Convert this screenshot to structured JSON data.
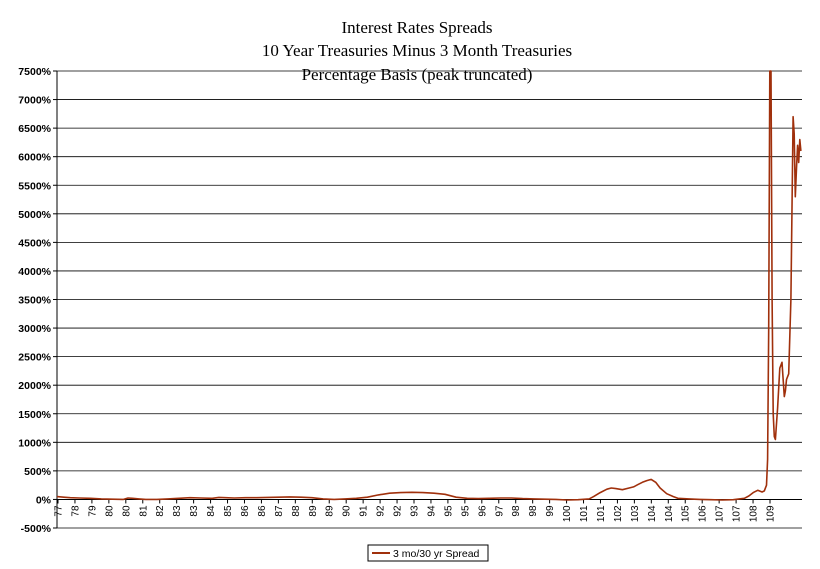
{
  "chart_data": {
    "type": "line",
    "title_lines": [
      "Interest Rates Spreads",
      "10 Year Treasuries Minus 3 Month Treasuries",
      "Percentage Basis (peak truncated)"
    ],
    "ylim": [
      -500,
      7500
    ],
    "ystep": 500,
    "y_tick_labels": [
      "-500%",
      "0%",
      "500%",
      "1000%",
      "1500%",
      "2000%",
      "2500%",
      "3000%",
      "3500%",
      "4000%",
      "4500%",
      "5000%",
      "5500%",
      "6000%",
      "6500%",
      "7000%",
      "7500%"
    ],
    "xlim": [
      77,
      110.6
    ],
    "x_tick_labels": [
      "77",
      "78",
      "79",
      "80",
      "80",
      "81",
      "82",
      "83",
      "83",
      "84",
      "85",
      "86",
      "86",
      "87",
      "88",
      "89",
      "89",
      "90",
      "91",
      "92",
      "92",
      "93",
      "94",
      "95",
      "95",
      "96",
      "97",
      "98",
      "98",
      "99",
      "100",
      "101",
      "101",
      "102",
      "103",
      "104",
      "104",
      "105",
      "106",
      "107",
      "107",
      "108",
      "109"
    ],
    "grid": true,
    "legend_position": "bottom-center",
    "series": [
      {
        "name": "3 mo/30 yr Spread",
        "color": "#a0300c",
        "x": [
          77.0,
          77.3,
          77.6,
          78.0,
          78.5,
          79.0,
          79.5,
          80.0,
          80.2,
          80.4,
          80.7,
          81.0,
          81.5,
          82.0,
          82.5,
          83.0,
          83.5,
          84.0,
          84.3,
          84.6,
          85.0,
          85.5,
          86.0,
          86.5,
          87.0,
          87.5,
          88.0,
          88.5,
          89.0,
          89.5,
          90.0,
          90.5,
          91.0,
          91.5,
          92.0,
          92.5,
          93.0,
          93.5,
          94.0,
          94.5,
          95.0,
          95.5,
          96.0,
          96.5,
          97.0,
          97.5,
          98.0,
          98.5,
          99.0,
          99.5,
          100.0,
          100.5,
          101.0,
          101.2,
          101.5,
          101.8,
          102.0,
          102.2,
          102.5,
          102.8,
          103.0,
          103.2,
          103.4,
          103.6,
          103.8,
          104.0,
          104.2,
          104.5,
          104.8,
          105.0,
          105.5,
          106.0,
          106.5,
          107.0,
          107.5,
          108.0,
          108.2,
          108.4,
          108.6,
          108.8,
          108.9,
          109.0,
          109.05,
          109.1,
          109.15,
          109.2,
          109.25,
          109.3,
          109.35,
          109.4,
          109.5,
          109.6,
          109.7,
          109.8,
          109.85,
          109.9,
          110.0,
          110.1,
          110.2,
          110.25,
          110.3,
          110.35,
          110.4,
          110.45,
          110.5,
          110.55
        ],
        "values": [
          50,
          40,
          30,
          25,
          20,
          10,
          5,
          0,
          25,
          20,
          10,
          0,
          0,
          10,
          20,
          30,
          25,
          20,
          35,
          30,
          25,
          30,
          30,
          35,
          40,
          45,
          40,
          30,
          10,
          0,
          10,
          20,
          40,
          80,
          110,
          120,
          125,
          120,
          110,
          90,
          40,
          20,
          15,
          20,
          25,
          25,
          15,
          10,
          5,
          0,
          -10,
          -5,
          10,
          50,
          120,
          180,
          200,
          190,
          170,
          200,
          220,
          260,
          300,
          330,
          350,
          300,
          200,
          100,
          50,
          20,
          10,
          0,
          -5,
          -10,
          -5,
          20,
          60,
          120,
          160,
          130,
          150,
          250,
          700,
          3000,
          7500,
          7500,
          3500,
          1500,
          1100,
          1050,
          1600,
          2300,
          2400,
          1800,
          1900,
          2100,
          2200,
          3500,
          6700,
          6400,
          5300,
          5800,
          6200,
          5900,
          6300,
          6100
        ]
      }
    ]
  }
}
